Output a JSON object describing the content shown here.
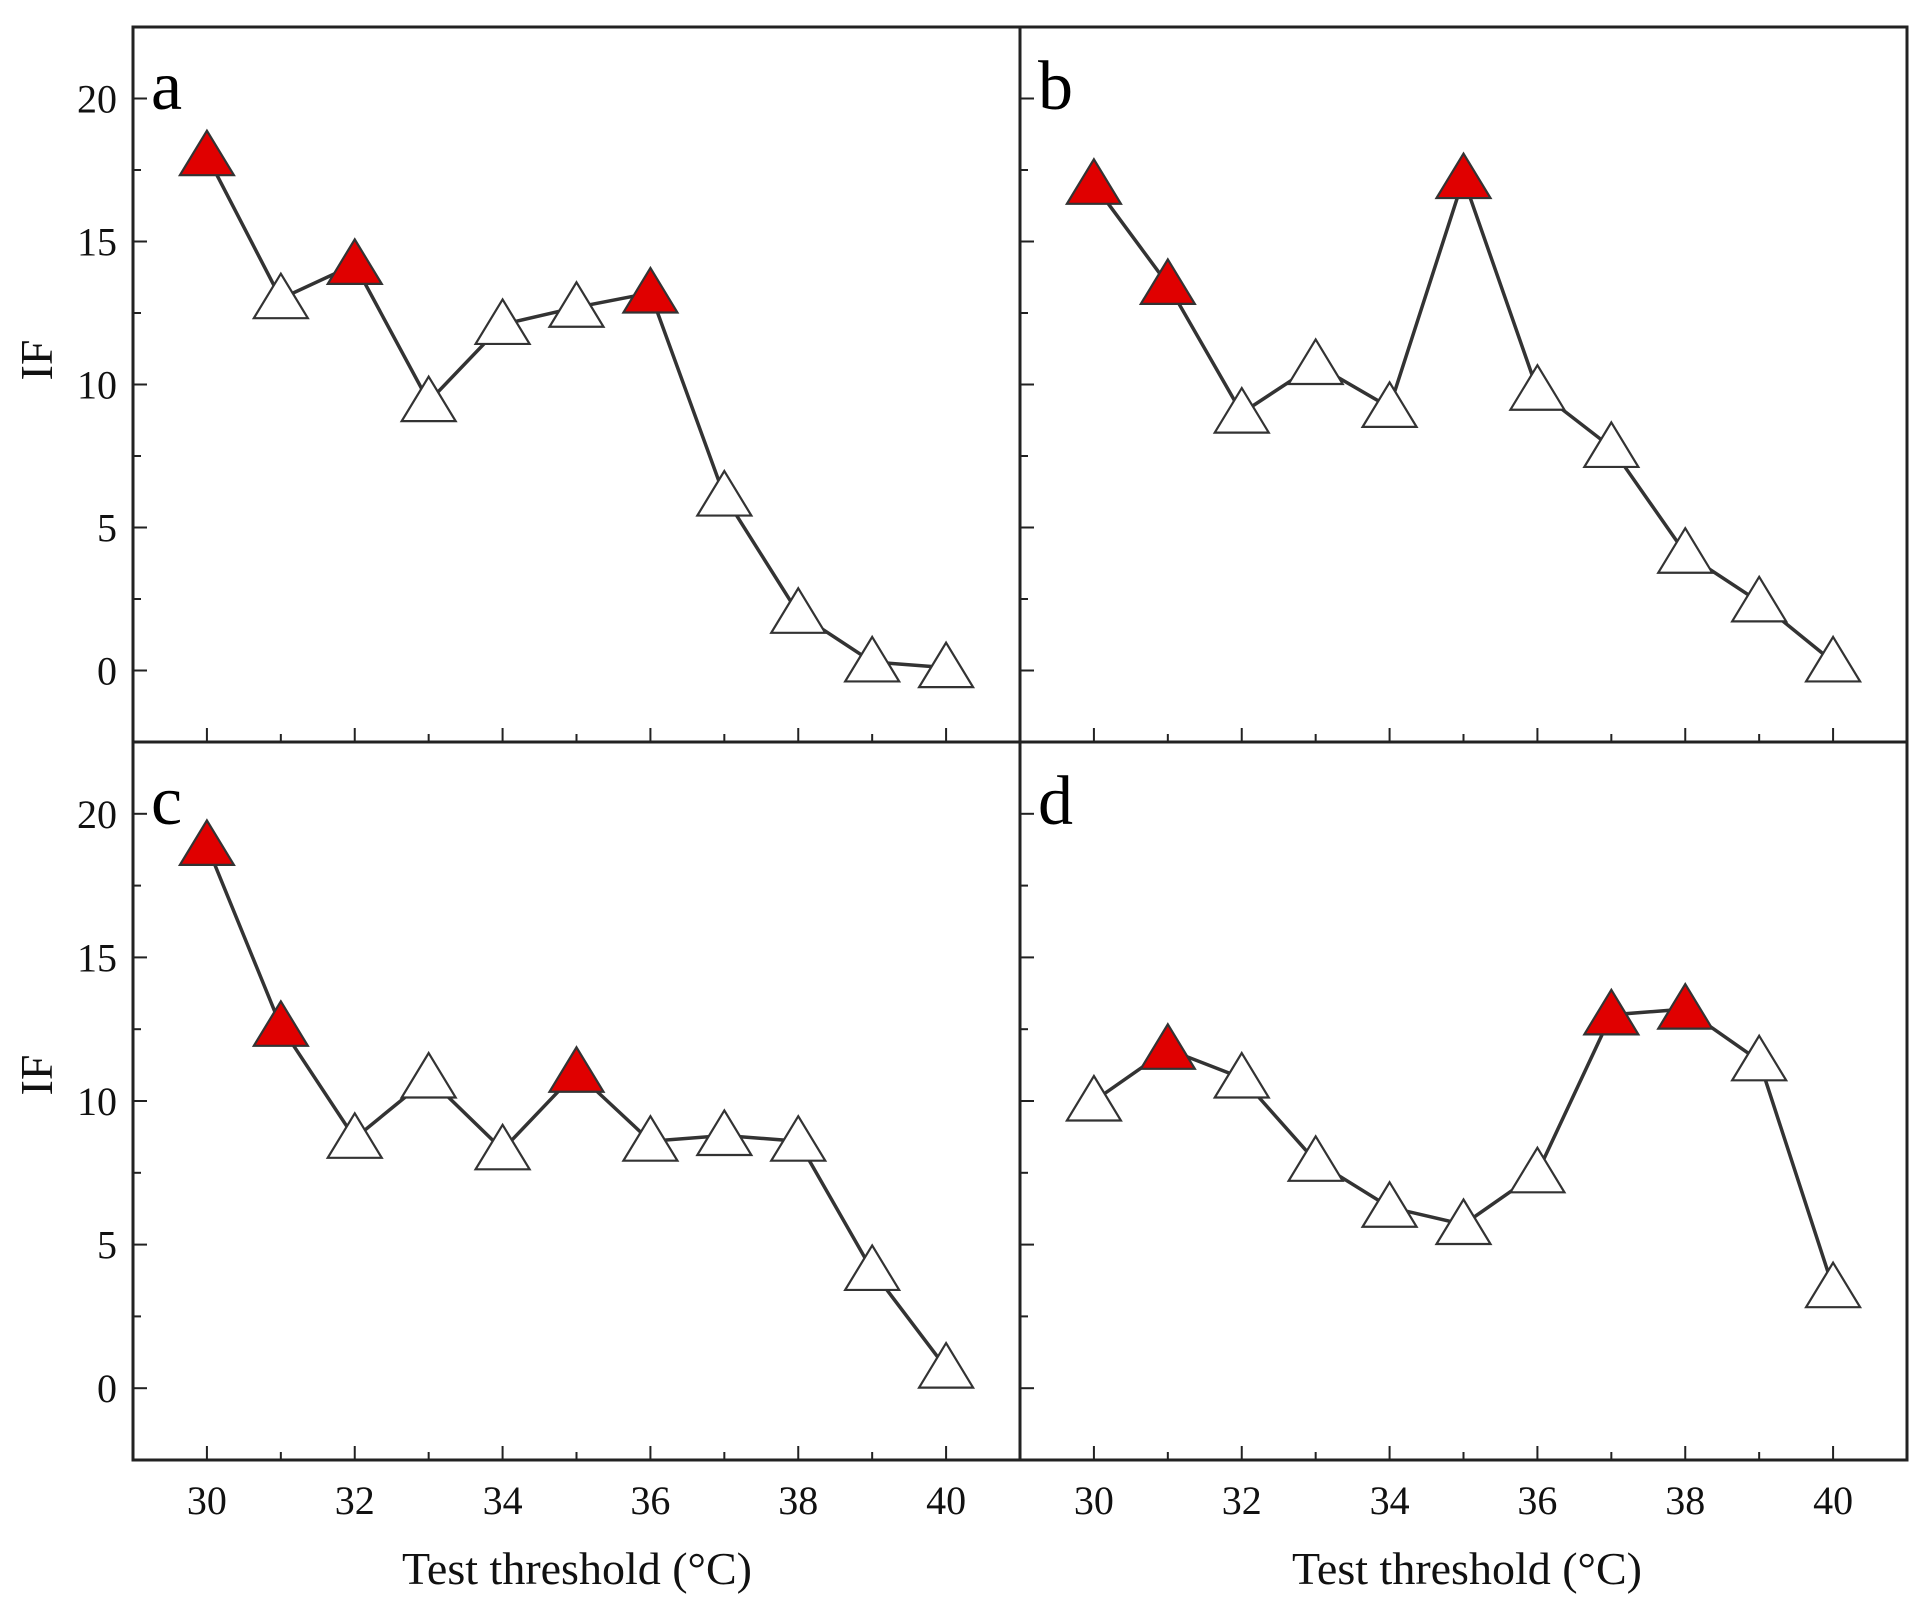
{
  "chart_data": {
    "type": "line",
    "layout": "2x2 panels sharing axes",
    "xlabel": "Test threshold (°C)",
    "ylabel": "IF",
    "xlim": [
      29,
      41
    ],
    "ylim": [
      -2.5,
      22.5
    ],
    "xticks": [
      30,
      32,
      34,
      36,
      38,
      40
    ],
    "yticks": [
      0,
      5,
      10,
      15,
      20
    ],
    "x": [
      30,
      31,
      32,
      33,
      34,
      35,
      36,
      37,
      38,
      39,
      40
    ],
    "colors": {
      "highlight": "#e00000",
      "open": "#ffffff",
      "line": "#333333",
      "frame": "#222222"
    },
    "marker": "triangle",
    "panels": [
      {
        "label": "a",
        "values": [
          18.0,
          13.0,
          14.2,
          9.4,
          12.1,
          12.7,
          13.2,
          6.1,
          2.0,
          0.3,
          0.1
        ],
        "highlighted": [
          true,
          false,
          true,
          false,
          false,
          false,
          true,
          false,
          false,
          false,
          false
        ]
      },
      {
        "label": "b",
        "values": [
          17.0,
          13.5,
          9.0,
          10.7,
          9.2,
          17.2,
          9.8,
          7.8,
          4.1,
          2.4,
          0.3
        ],
        "highlighted": [
          true,
          true,
          false,
          false,
          false,
          true,
          false,
          false,
          false,
          false,
          false
        ]
      },
      {
        "label": "c",
        "values": [
          18.9,
          12.6,
          8.7,
          10.8,
          8.3,
          11.0,
          8.6,
          8.8,
          8.6,
          4.1,
          0.7
        ],
        "highlighted": [
          true,
          true,
          false,
          false,
          false,
          true,
          false,
          false,
          false,
          false,
          false
        ]
      },
      {
        "label": "d",
        "values": [
          10.0,
          11.8,
          10.8,
          7.9,
          6.3,
          5.7,
          7.5,
          13.0,
          13.2,
          11.4,
          3.5
        ],
        "highlighted": [
          false,
          true,
          false,
          false,
          false,
          false,
          false,
          true,
          true,
          false,
          false
        ]
      }
    ]
  }
}
